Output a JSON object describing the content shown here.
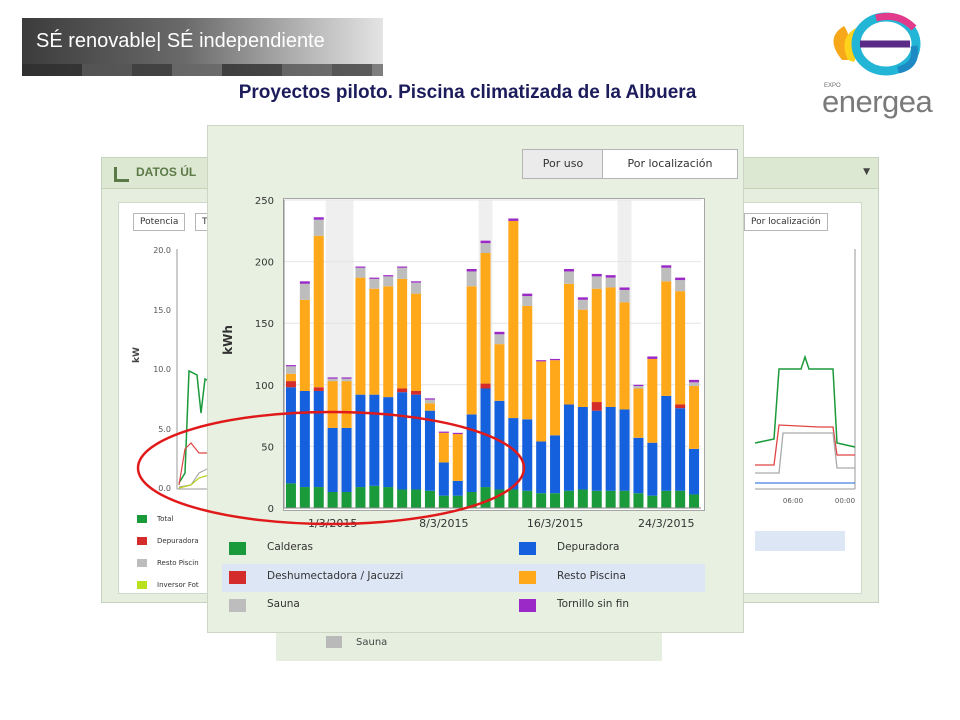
{
  "banner": {
    "text": "SÉ renovable| SÉ independiente"
  },
  "page_title": "Proyectos piloto. Piscina climatizada de la Albuera",
  "logo": {
    "small": "EXPO",
    "name": "energea"
  },
  "background_panel": {
    "header": "DATOS ÚL",
    "tabs": [
      "Potencia",
      "T"
    ],
    "right_tab": "Por localización",
    "y_unit": "kW",
    "y_ticks": [
      "20.0",
      "15.0",
      "10.0",
      "5.0",
      "0.0"
    ],
    "x_ticks": [
      "06:00",
      "00:00"
    ],
    "legend": [
      "Total",
      "Depuradora",
      "Resto Piscin",
      "Inversor Fot"
    ],
    "bottom_legend": "Sauna"
  },
  "front": {
    "buttons": {
      "por_uso": "Por uso",
      "por_localizacion": "Por localización"
    }
  },
  "colors": {
    "calderas": "#1a9a3a",
    "deshumectadora": "#d42b2b",
    "sauna": "#bdbdbd",
    "depuradora": "#1560dd",
    "resto_piscina": "#ffa81a",
    "tornillo": "#9b29c7",
    "annotation_circle": "#e01a1a"
  },
  "chart_data": {
    "type": "bar",
    "stacked": true,
    "ylabel": "kWh",
    "ylim": [
      0,
      250
    ],
    "yticks": [
      0,
      50,
      100,
      150,
      200,
      250
    ],
    "xtick_labels": [
      "1/3/2015",
      "8/3/2015",
      "16/3/2015",
      "24/3/2015"
    ],
    "xtick_positions": [
      3,
      11,
      19,
      27
    ],
    "grid": true,
    "legend_position": "bottom",
    "series": [
      {
        "name": "Calderas",
        "color": "#1a9a3a",
        "values": [
          20,
          17,
          17,
          13,
          13,
          17,
          18,
          17,
          15,
          15,
          14,
          10,
          10,
          13,
          17,
          15,
          15,
          14,
          12,
          12,
          14,
          15,
          14,
          14,
          14,
          12,
          10,
          14,
          14,
          11
        ]
      },
      {
        "name": "Depuradora",
        "color": "#1560dd",
        "values": [
          78,
          78,
          78,
          52,
          52,
          75,
          74,
          73,
          79,
          77,
          65,
          27,
          12,
          63,
          80,
          72,
          58,
          58,
          42,
          47,
          70,
          67,
          65,
          68,
          66,
          45,
          43,
          77,
          67,
          37
        ]
      },
      {
        "name": "Deshumectadora / Jacuzzi",
        "color": "#d42b2b",
        "values": [
          5,
          0,
          3,
          0,
          0,
          0,
          0,
          0,
          3,
          3,
          0,
          0,
          0,
          0,
          4,
          0,
          0,
          0,
          0,
          0,
          0,
          0,
          7,
          0,
          0,
          0,
          0,
          0,
          3,
          0
        ]
      },
      {
        "name": "Resto Piscina",
        "color": "#ffa81a",
        "values": [
          6,
          74,
          123,
          38,
          38,
          95,
          86,
          90,
          89,
          79,
          6,
          24,
          38,
          104,
          106,
          46,
          160,
          92,
          65,
          61,
          98,
          79,
          92,
          97,
          87,
          40,
          68,
          93,
          92,
          51
        ]
      },
      {
        "name": "Sauna",
        "color": "#bdbdbd",
        "values": [
          6,
          13,
          13,
          2,
          2,
          8,
          8,
          8,
          9,
          9,
          3,
          0,
          0,
          12,
          8,
          8,
          0,
          8,
          0,
          0,
          10,
          8,
          10,
          8,
          10,
          2,
          0,
          11,
          9,
          3
        ]
      },
      {
        "name": "Tornillo sin fin",
        "color": "#9b29c7",
        "values": [
          1,
          2,
          2,
          1,
          1,
          1,
          1,
          1,
          1,
          1,
          1,
          1,
          1,
          2,
          2,
          2,
          2,
          2,
          1,
          1,
          2,
          2,
          2,
          2,
          2,
          1,
          2,
          2,
          2,
          2
        ]
      }
    ]
  }
}
